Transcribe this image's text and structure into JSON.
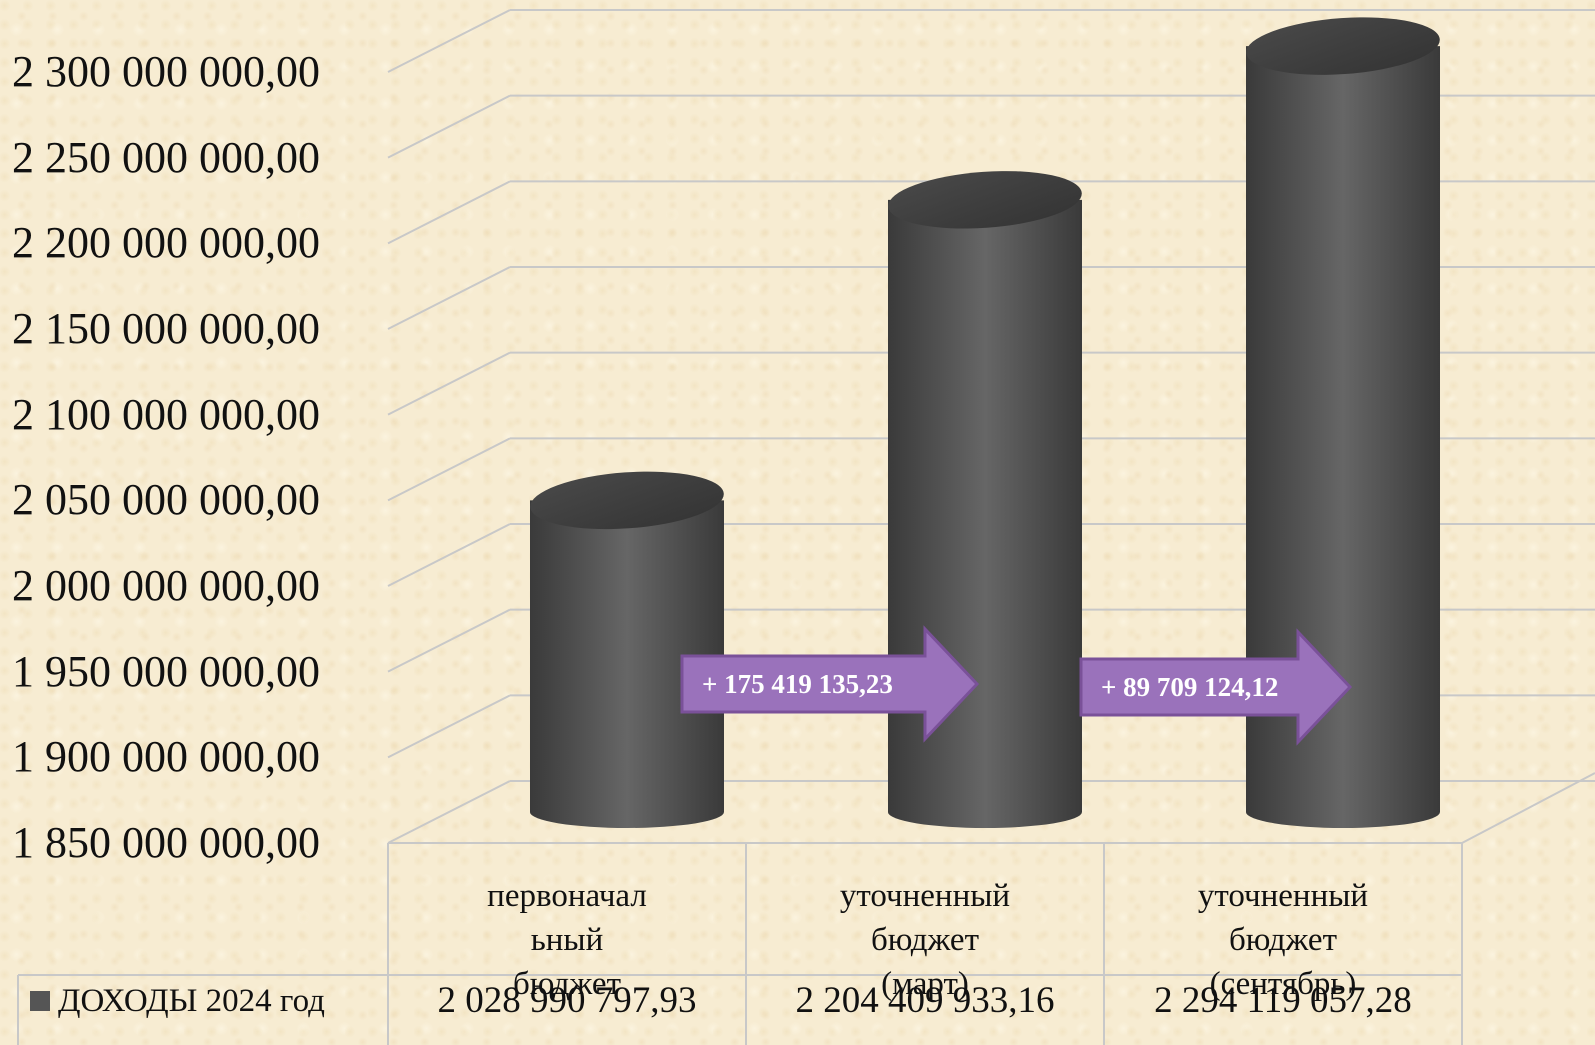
{
  "chart_data": {
    "type": "bar",
    "style": "3d-cylinder",
    "categories": [
      "первоначальный бюджет",
      "уточненный бюджет (март)",
      "уточненный бюджет (сентябрь)"
    ],
    "category_display": [
      [
        "первоначал",
        "ьный",
        "бюджет"
      ],
      [
        "уточненный",
        "бюджет",
        "(март)"
      ],
      [
        "уточненный",
        "бюджет",
        "(сентябрь)"
      ]
    ],
    "series": [
      {
        "name": "ДОХОДЫ 2024 год",
        "values": [
          2028990797.93,
          2204409933.16,
          2294119057.28
        ]
      }
    ],
    "value_labels": [
      "2 028 990 797,93",
      "2 204 409 933,16",
      "2 294 119 057,28"
    ],
    "ylim": [
      1850000000,
      2300000000
    ],
    "yticks": [
      "2 300 000 000,00",
      "2 250 000 000,00",
      "2 200 000 000,00",
      "2 150 000 000,00",
      "2 100 000 000,00",
      "2 050 000 000,00",
      "2 000 000 000,00",
      "1 950 000 000,00",
      "1 900 000 000,00",
      "1 850 000 000,00"
    ],
    "annotations": [
      "+ 175 419 135,23",
      "+ 89 709 124,12"
    ],
    "legend_position": "bottom-data-table",
    "grid": true,
    "colors": {
      "bar": "#505050",
      "arrow": "#9a72bb",
      "arrow_border": "#7a5199",
      "grid": "#c8c8c8"
    }
  }
}
